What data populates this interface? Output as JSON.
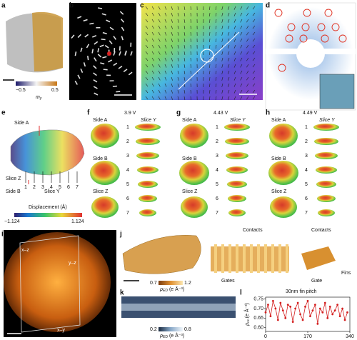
{
  "panel_letters": [
    "a",
    "b",
    "c",
    "d",
    "e",
    "f",
    "g",
    "h",
    "i",
    "j",
    "k",
    "l"
  ],
  "panel_a": {
    "colorbar_min": "−0.5",
    "colorbar_max": "0.5",
    "colorbar_symbol": "m",
    "colorbar_subscript": "y"
  },
  "panel_e": {
    "side_a": "Side A",
    "slice_z": "Slice Z",
    "side_b": "Side B",
    "slice_y": "Slice Y",
    "slices": [
      "1",
      "2",
      "3",
      "4",
      "5",
      "6",
      "7"
    ],
    "colorbar_label": "Displacement (Å)",
    "colorbar_min": "−1.124",
    "colorbar_max": "1.124"
  },
  "panel_f": {
    "voltage": "3.9 V",
    "side_a": "Side A",
    "slice_y": "Slice Y",
    "side_b": "Side B",
    "slice_z": "Slice Z",
    "slices": [
      "1",
      "2",
      "3",
      "4",
      "5",
      "6",
      "7"
    ]
  },
  "panel_g": {
    "voltage": "4.43 V",
    "side_a": "Side A",
    "slice_y": "Slice Y",
    "side_b": "Side B",
    "slice_z": "Slice Z",
    "slices": [
      "1",
      "2",
      "3",
      "4",
      "5",
      "6",
      "7"
    ]
  },
  "panel_h": {
    "voltage": "4.49 V",
    "side_a": "Side A",
    "slice_y": "Slice Y",
    "side_b": "Side B",
    "slice_z": "Slice Z",
    "slices": [
      "1",
      "2",
      "3",
      "4",
      "5",
      "6",
      "7"
    ]
  },
  "panel_i": {
    "plane_xz": "x–z",
    "plane_yz": "y–z",
    "plane_xy": "x–y"
  },
  "panel_j": {
    "contacts": "Contacts",
    "gates": "Gates",
    "contacts_inset": "Contacts",
    "gate": "Gate",
    "fins": "Fins",
    "colorbar_min": "0.7",
    "colorbar_max": "1.2",
    "colorbar_symbol": "ρ",
    "colorbar_subscript": "ED",
    "colorbar_unit": "(e Å⁻³)"
  },
  "panel_k": {
    "colorbar_min": "0.2",
    "colorbar_max": "0.8",
    "colorbar_symbol": "ρ",
    "colorbar_subscript": "ED",
    "colorbar_unit": "(e Å⁻³)"
  },
  "panel_l": {
    "type": "line",
    "title": "30nm fin pitch",
    "y_symbol": "ρ",
    "y_subscript": "ED",
    "y_unit": "(e Å⁻³)",
    "color": "#d42020",
    "x": [
      0,
      10,
      20,
      30,
      40,
      50,
      60,
      70,
      80,
      90,
      100,
      110,
      120,
      130,
      140,
      150,
      160,
      170,
      180,
      190,
      200,
      210,
      220,
      230,
      240,
      250,
      260,
      270,
      280,
      290,
      300,
      310,
      320,
      330
    ],
    "values": [
      0.68,
      0.72,
      0.66,
      0.74,
      0.7,
      0.64,
      0.73,
      0.69,
      0.65,
      0.72,
      0.71,
      0.63,
      0.7,
      0.73,
      0.67,
      0.64,
      0.71,
      0.74,
      0.66,
      0.69,
      0.72,
      0.62,
      0.7,
      0.68,
      0.73,
      0.65,
      0.71,
      0.67,
      0.69,
      0.72,
      0.66,
      0.7,
      0.64,
      0.68
    ],
    "xlim": [
      0,
      340
    ],
    "ylim": [
      0.58,
      0.76
    ],
    "xticks": [
      0,
      170,
      340
    ],
    "yticks": [
      {
        "value": 0.6,
        "label": "0.60"
      },
      {
        "value": 0.65,
        "label": "0.65"
      },
      {
        "value": 0.7,
        "label": "0.70"
      },
      {
        "value": 0.75,
        "label": "0.75"
      }
    ]
  }
}
